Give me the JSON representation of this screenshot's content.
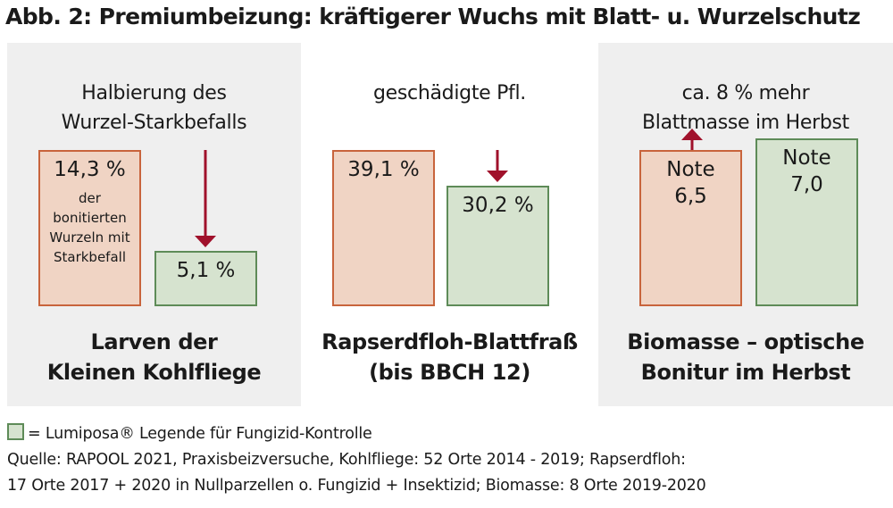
{
  "title": "Abb. 2: Premiumbeizung: kräftigerer Wuchs mit Blatt- u. Wurzelschutz",
  "colors": {
    "base_fill": "#f0d4c4",
    "base_border": "#c8643c",
    "lumiposa_fill": "#d6e3cf",
    "lumiposa_border": "#5e8b58",
    "arrow": "#a0112b",
    "panel_bg": "#efefef"
  },
  "chart_data": {
    "type": "bar",
    "panels": [
      {
        "subtitle": "Halbierung des\nWurzel-Starkbefalls",
        "caption": "Larven der\nKleinen Kohlfliege",
        "arrow": "down",
        "values": [
          14.3,
          5.1
        ],
        "labels": [
          "14,3 %",
          "5,1 %"
        ],
        "base_note": "der\nbonitierten\nWurzeln mit\nStarkbefall"
      },
      {
        "subtitle": "geschädigte Pfl.",
        "caption": "Rapserdfloh-Blattfraß\n(bis BBCH 12)",
        "arrow": "down",
        "values": [
          39.1,
          30.2
        ],
        "labels": [
          "39,1 %",
          "30,2 %"
        ],
        "base_note": ""
      },
      {
        "subtitle": "ca. 8 % mehr\nBlattmasse im Herbst",
        "caption": "Biomasse – optische\nBonitur im Herbst",
        "arrow": "up",
        "values": [
          6.5,
          7.0
        ],
        "labels": [
          "Note\n6,5",
          "Note\n7,0"
        ],
        "base_note": ""
      }
    ]
  },
  "legend": {
    "text": "= Lumiposa® Legende für Fungizid-Kontrolle"
  },
  "source": [
    "Quelle: RAPOOL 2021, Praxisbeizversuche, Kohlfliege: 52 Orte 2014 - 2019; Rapserdfloh:",
    "17 Orte 2017 + 2020 in Nullparzellen o. Fungizid + Insektizid; Biomasse: 8 Orte 2019-2020"
  ]
}
